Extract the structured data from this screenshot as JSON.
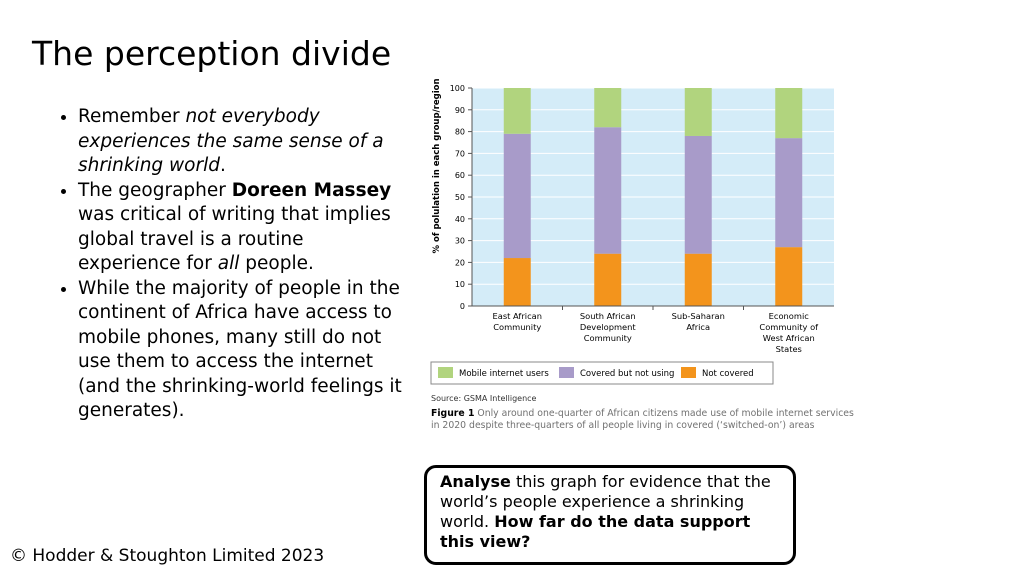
{
  "slide": {
    "title": "The perception divide",
    "bullets": [
      {
        "parts": [
          {
            "text": "Remember ",
            "style": "normal"
          },
          {
            "text": "not everybody experiences the same sense of a shrinking world",
            "style": "italic"
          },
          {
            "text": ".",
            "style": "normal"
          }
        ]
      },
      {
        "parts": [
          {
            "text": "The geographer ",
            "style": "normal"
          },
          {
            "text": "Doreen Massey",
            "style": "bold"
          },
          {
            "text": " was critical of writing that implies global travel is a routine experience for ",
            "style": "normal"
          },
          {
            "text": "all",
            "style": "italic"
          },
          {
            "text": " people.",
            "style": "normal"
          }
        ]
      },
      {
        "parts": [
          {
            "text": "While the majority of people in the continent of Africa have access to mobile phones, many still do not use them to access the internet (and the shrinking-world feelings it generates).",
            "style": "normal"
          }
        ]
      }
    ],
    "question": {
      "parts": [
        {
          "text": "Analyse",
          "style": "bold"
        },
        {
          "text": " this graph for evidence that the world’s people experience a shrinking world. ",
          "style": "normal"
        },
        {
          "text": "How far do the data support this view?",
          "style": "bold"
        }
      ]
    },
    "footer": "© Hodder & Stoughton Limited 2023"
  },
  "chart_data": {
    "type": "bar",
    "stacked": true,
    "ylabel": "% of polulation in each group/region",
    "ylim": [
      0,
      100
    ],
    "yticks": [
      0,
      10,
      20,
      30,
      40,
      50,
      60,
      70,
      80,
      90,
      100
    ],
    "grid": true,
    "categories": [
      [
        "East African",
        "Community"
      ],
      [
        "South African",
        "Development",
        "Community"
      ],
      [
        "Sub-Saharan",
        "Africa"
      ],
      [
        "Economic",
        "Community of",
        "West African",
        "States"
      ]
    ],
    "series": [
      {
        "name": "Not covered",
        "color": "#f3941c",
        "values": [
          22,
          24,
          24,
          27
        ]
      },
      {
        "name": "Covered but not using",
        "color": "#a89bc9",
        "values": [
          57,
          58,
          54,
          50
        ]
      },
      {
        "name": "Mobile internet users",
        "color": "#b1d47e",
        "values": [
          21,
          18,
          22,
          23
        ]
      }
    ],
    "legend_order": [
      "Mobile internet users",
      "Covered but not using",
      "Not covered"
    ],
    "legend_position": "bottom",
    "source": "Source: GSMA Intelligence",
    "caption_label": "Figure 1",
    "caption_text": " Only around one-quarter of African citizens made use of mobile internet services in 2020 despite three-quarters of all people living in covered (‘switched-on’) areas",
    "colors": {
      "plot_bg": "#d4ecf8",
      "grid": "#ffffff",
      "caption": "#717171"
    }
  }
}
